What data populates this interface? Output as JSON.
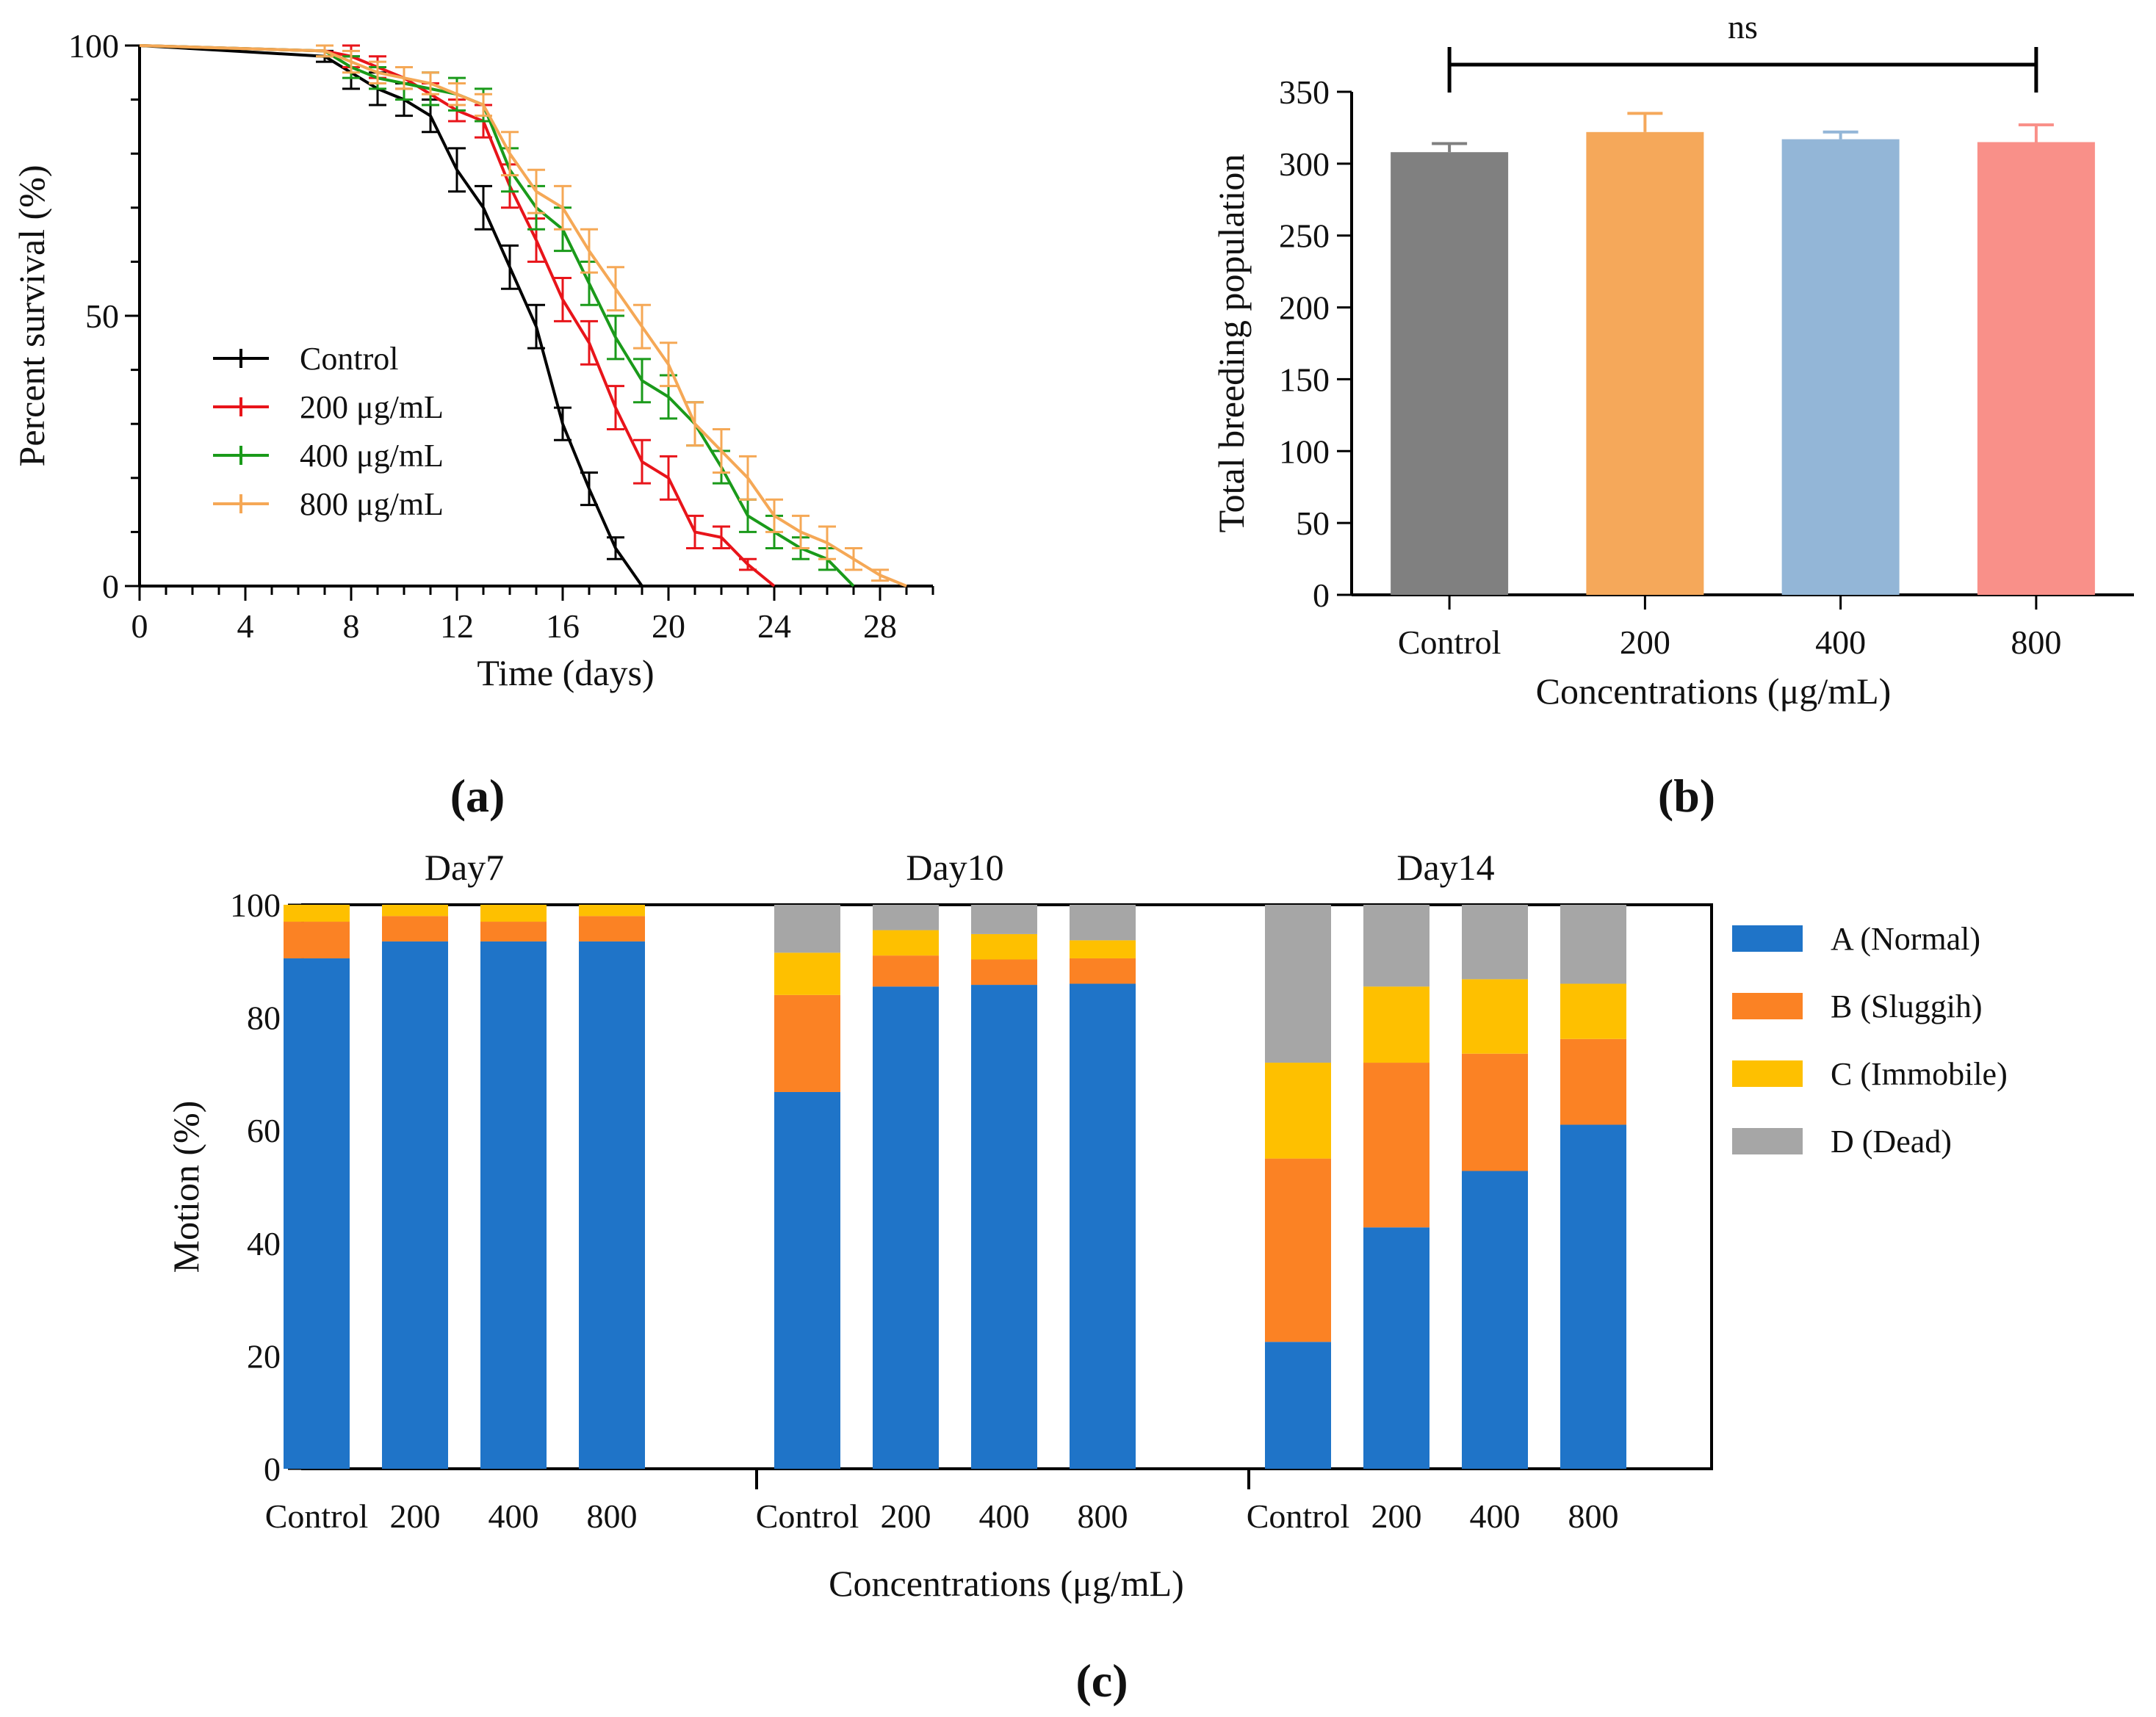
{
  "chart_data": [
    {
      "id": "a",
      "type": "line",
      "panel_label": "(a)",
      "xlabel": "Time (days)",
      "ylabel": "Percent survival (%)",
      "xlim": [
        0,
        30
      ],
      "ylim": [
        0,
        100
      ],
      "xticks": [
        0,
        4,
        8,
        12,
        16,
        20,
        24,
        28
      ],
      "yticks": [
        0,
        50,
        100
      ],
      "legend_position": "middle-left",
      "series": [
        {
          "name": "Control",
          "color": "#000000",
          "x": [
            0,
            7,
            8,
            9,
            10,
            11,
            12,
            13,
            14,
            15,
            16,
            17,
            18,
            19
          ],
          "y": [
            100,
            98,
            95,
            92,
            90,
            87,
            77,
            70,
            59,
            48,
            30,
            18,
            7,
            0
          ],
          "err": [
            0,
            1,
            3,
            3,
            3,
            3,
            4,
            4,
            4,
            4,
            3,
            3,
            2,
            0
          ]
        },
        {
          "name": "200 μg/mL",
          "color": "#e8141a",
          "x": [
            0,
            7,
            8,
            9,
            10,
            11,
            12,
            13,
            14,
            15,
            16,
            17,
            18,
            19,
            20,
            21,
            22,
            23,
            24
          ],
          "y": [
            100,
            99,
            98,
            96,
            94,
            91,
            88,
            86,
            74,
            64,
            53,
            45,
            33,
            23,
            20,
            10,
            9,
            4,
            0
          ],
          "err": [
            0,
            1,
            2,
            2,
            2,
            2,
            2,
            3,
            4,
            4,
            4,
            4,
            4,
            4,
            4,
            3,
            2,
            1,
            0
          ]
        },
        {
          "name": "400 μg/mL",
          "color": "#1a9a1a",
          "x": [
            0,
            7,
            8,
            9,
            10,
            11,
            12,
            13,
            14,
            15,
            16,
            17,
            18,
            19,
            20,
            21,
            22,
            23,
            24,
            25,
            26,
            27
          ],
          "y": [
            100,
            99,
            96,
            94,
            93,
            92,
            91,
            89,
            77,
            70,
            66,
            56,
            46,
            38,
            35,
            30,
            22,
            13,
            10,
            7,
            5,
            0
          ],
          "err": [
            0,
            1,
            2,
            2,
            3,
            3,
            3,
            3,
            4,
            4,
            4,
            4,
            4,
            4,
            4,
            4,
            3,
            3,
            3,
            2,
            2,
            0
          ]
        },
        {
          "name": "800 μg/mL",
          "color": "#f5a856",
          "x": [
            0,
            7,
            8,
            9,
            10,
            11,
            12,
            13,
            14,
            15,
            16,
            17,
            18,
            19,
            20,
            21,
            22,
            23,
            24,
            25,
            26,
            27,
            28,
            29
          ],
          "y": [
            100,
            99,
            97,
            95,
            94,
            93,
            91,
            89,
            80,
            73,
            70,
            62,
            55,
            48,
            41,
            30,
            25,
            20,
            13,
            10,
            8,
            5,
            2,
            0
          ],
          "err": [
            0,
            1,
            2,
            2,
            2,
            2,
            2,
            2,
            4,
            4,
            4,
            4,
            4,
            4,
            4,
            4,
            4,
            4,
            3,
            3,
            3,
            2,
            1,
            0
          ]
        }
      ]
    },
    {
      "id": "b",
      "type": "bar",
      "panel_label": "(b)",
      "categories": [
        "Control",
        "200",
        "400",
        "800"
      ],
      "values": [
        308,
        322,
        317,
        315
      ],
      "errors": [
        6,
        13,
        5,
        12
      ],
      "colors": [
        "#808080",
        "#f5a85a",
        "#93b6d7",
        "#f99089"
      ],
      "xlabel": "Concentrations (μg/mL)",
      "ylabel": "Total breeding population",
      "ylim": [
        0,
        350
      ],
      "yticks": [
        0,
        50,
        100,
        150,
        200,
        250,
        300,
        350
      ],
      "significance": "ns"
    },
    {
      "id": "c",
      "type": "stacked-bar",
      "panel_label": "(c)",
      "xlabel": "Concentrations (μg/mL)",
      "ylabel": "Motion (%)",
      "ylim": [
        0,
        100
      ],
      "yticks": [
        0,
        20,
        40,
        60,
        80,
        100
      ],
      "legend_position": "right",
      "categories": [
        "Control",
        "200",
        "400",
        "800"
      ],
      "segment_names": [
        "A (Normal)",
        "B (Sluggih)",
        "C (Immobile)",
        "D (Dead)"
      ],
      "segment_colors": [
        "#1f74c8",
        "#fb8224",
        "#fec000",
        "#a6a6a6"
      ],
      "groups": [
        {
          "title": "Day7",
          "bars": [
            [
              90.5,
              6.5,
              3,
              0
            ],
            [
              93.5,
              4.5,
              2,
              0
            ],
            [
              93.5,
              3.5,
              3,
              0
            ],
            [
              93.5,
              4.5,
              2,
              0
            ]
          ]
        },
        {
          "title": "Day10",
          "bars": [
            [
              66.8,
              17.2,
              7.5,
              8.5
            ],
            [
              85.5,
              5.5,
              4.5,
              4.5
            ],
            [
              85.8,
              4.5,
              4.5,
              5.2
            ],
            [
              86,
              4.5,
              3.2,
              6.3
            ]
          ]
        },
        {
          "title": "Day14",
          "bars": [
            [
              22.5,
              32.5,
              17,
              28
            ],
            [
              42.8,
              29.2,
              13.5,
              14.5
            ],
            [
              52.8,
              20.8,
              13.2,
              13.2
            ],
            [
              61,
              15.2,
              9.8,
              14
            ]
          ]
        }
      ]
    }
  ]
}
